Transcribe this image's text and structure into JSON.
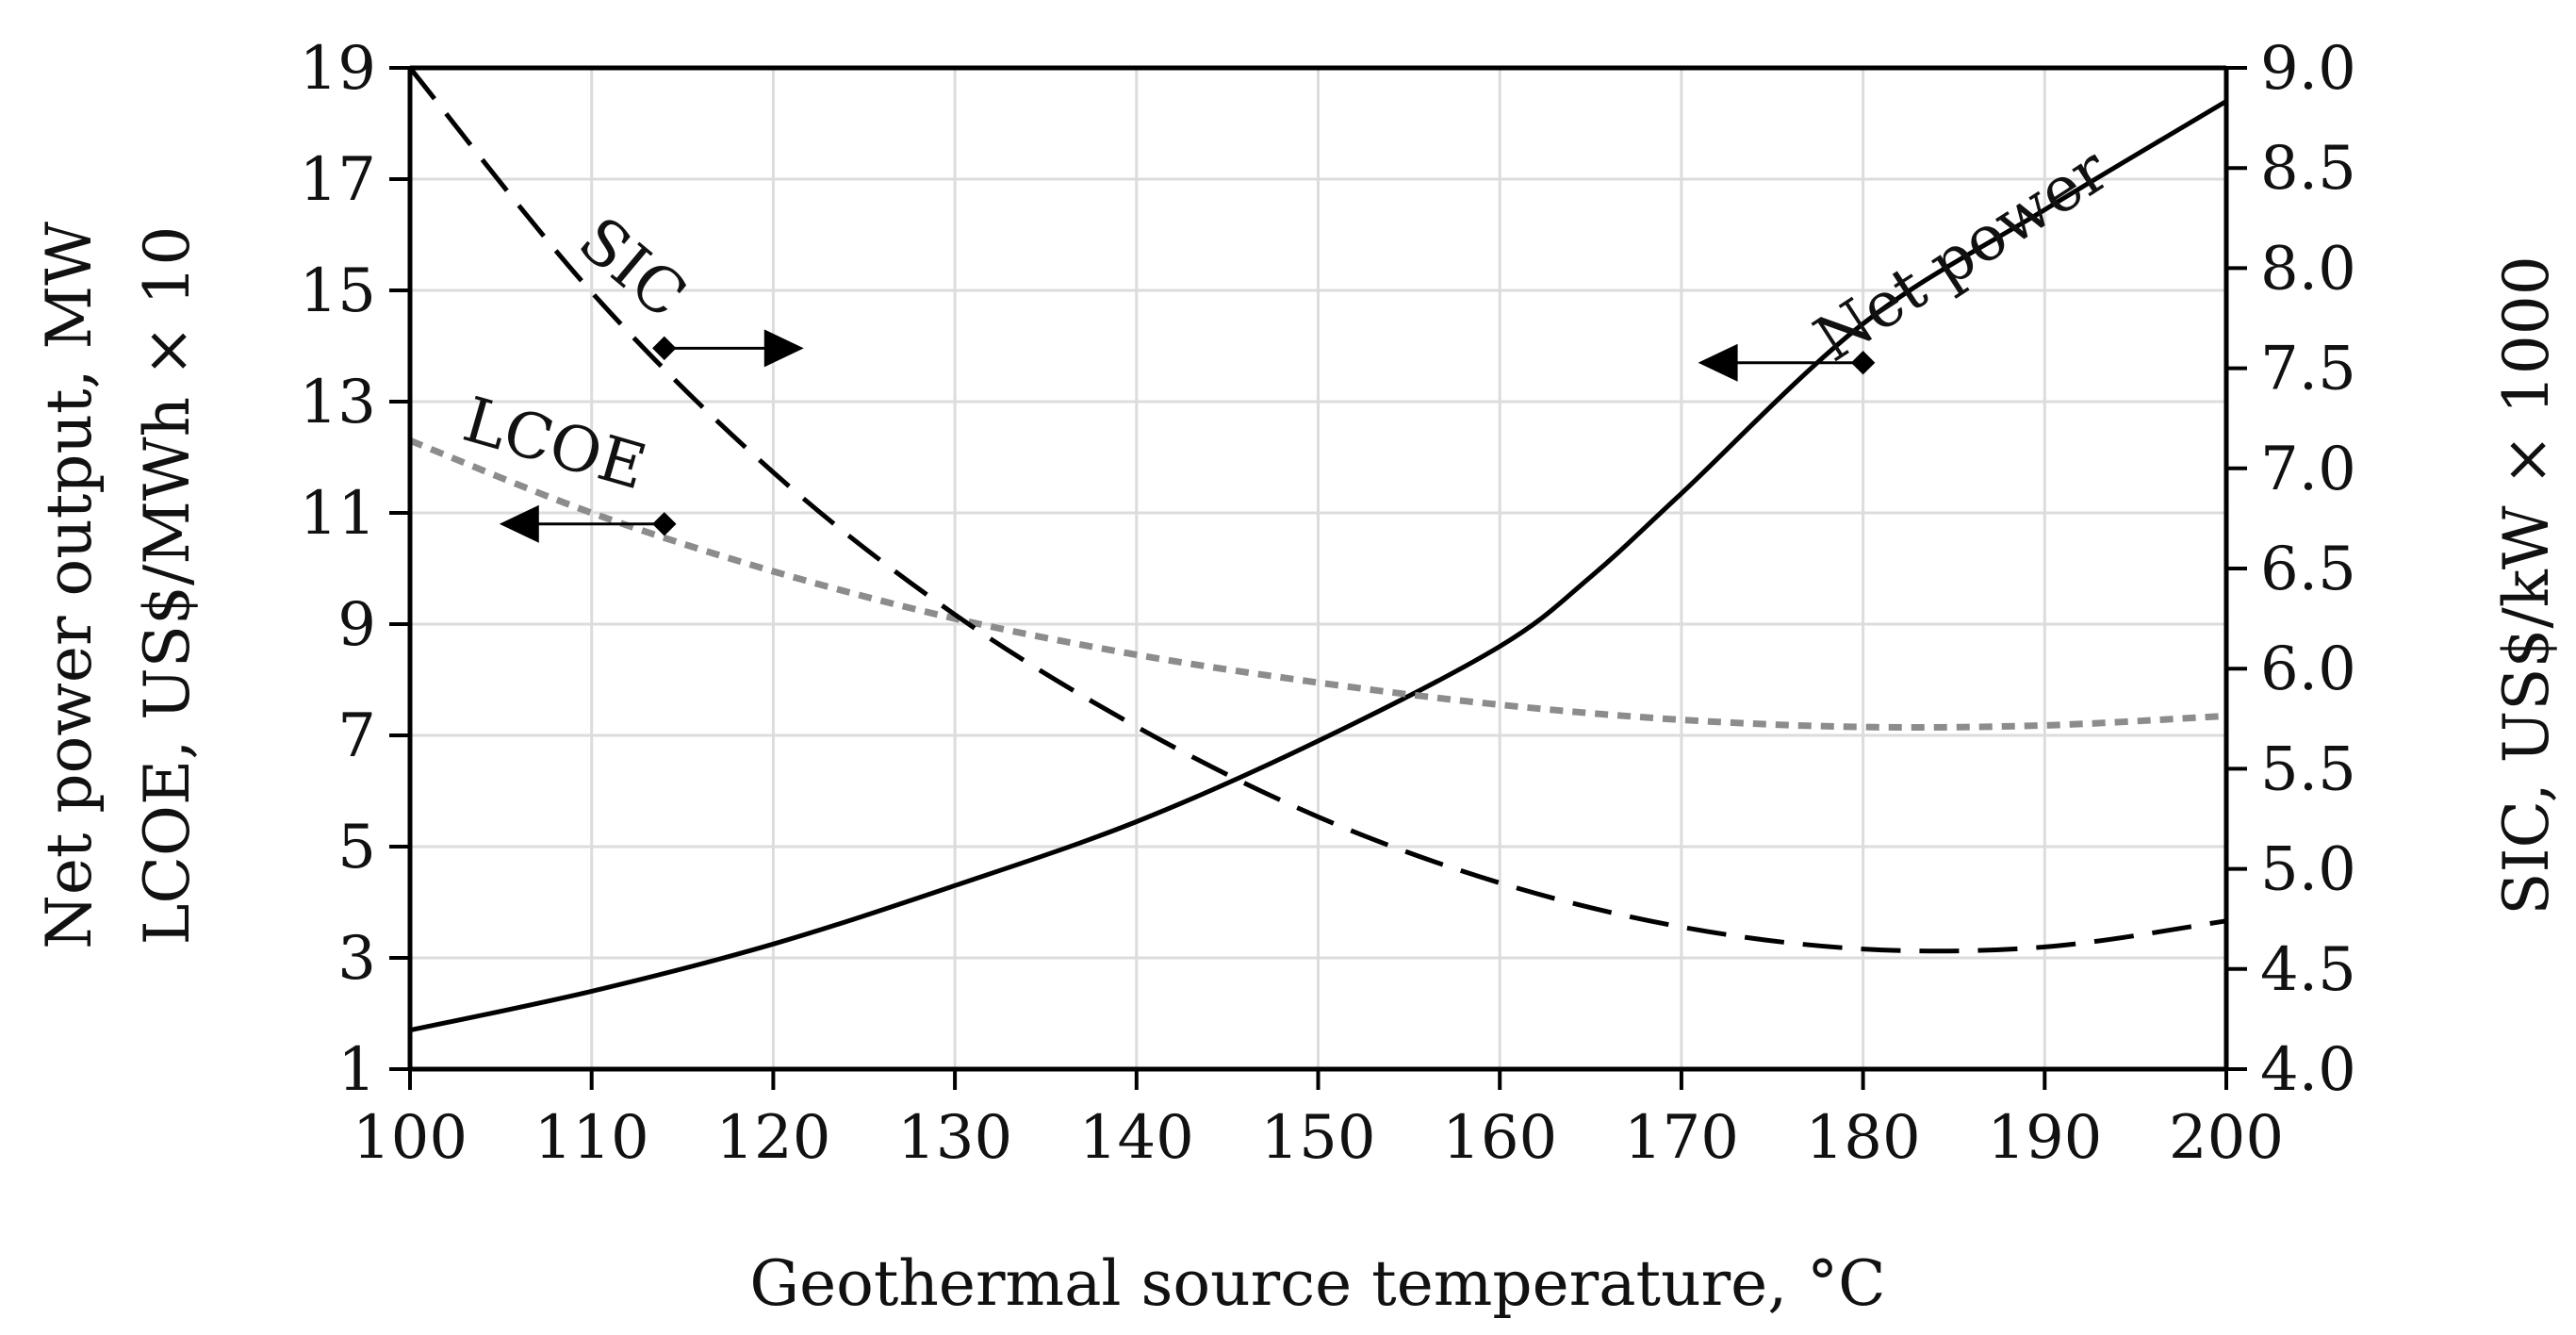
{
  "chart_data": {
    "type": "line",
    "xlabel": "Geothermal source temperature, °C",
    "ylabel_left": [
      "Net power output, MW",
      "LCOE, US$/MWh × 10"
    ],
    "ylabel_right": "SIC, US$/kW × 1000",
    "xlim": [
      100,
      200
    ],
    "ylim_left": [
      1,
      19
    ],
    "ylim_right": [
      4.0,
      9.0
    ],
    "grid": true,
    "x_ticks": [
      "100",
      "110",
      "120",
      "130",
      "140",
      "150",
      "160",
      "170",
      "180",
      "190",
      "200"
    ],
    "y_left_ticks": [
      "1",
      "3",
      "5",
      "7",
      "9",
      "11",
      "13",
      "15",
      "17",
      "19"
    ],
    "y_right_ticks": [
      "4.0",
      "4.5",
      "5.0",
      "5.5",
      "6.0",
      "6.5",
      "7.0",
      "7.5",
      "8.0",
      "8.5",
      "9.0"
    ],
    "series": [
      {
        "name": "Net power",
        "axis": "left",
        "style": "solid",
        "color": "#000000",
        "x": [
          100,
          110,
          120,
          130,
          140,
          150,
          160,
          165,
          170,
          180,
          190,
          200
        ],
        "values": [
          1.7,
          2.4,
          3.25,
          4.3,
          5.45,
          6.9,
          8.6,
          9.85,
          11.35,
          14.4,
          16.45,
          18.4
        ]
      },
      {
        "name": "LCOE",
        "axis": "left",
        "style": "dotted",
        "color": "#8c8c8c",
        "x": [
          100,
          110,
          120,
          130,
          140,
          150,
          160,
          170,
          180,
          190,
          200
        ],
        "values": [
          12.3,
          11.0,
          9.95,
          9.1,
          8.45,
          7.95,
          7.55,
          7.28,
          7.15,
          7.18,
          7.35
        ]
      },
      {
        "name": "SIC",
        "axis": "right",
        "style": "dashed",
        "color": "#000000",
        "x": [
          100,
          110,
          120,
          130,
          140,
          150,
          160,
          170,
          180,
          190,
          200
        ],
        "values": [
          9.0,
          7.88,
          6.98,
          6.27,
          5.71,
          5.26,
          4.93,
          4.71,
          4.6,
          4.61,
          4.74
        ]
      }
    ],
    "annotations": [
      {
        "text": "Net power",
        "series": "Net power",
        "arrow_to": "left",
        "x": 180,
        "y": 13.7
      },
      {
        "text": "SIC",
        "series": "SIC",
        "arrow_to": "right",
        "x": 114,
        "y": 7.6
      },
      {
        "text": "LCOE",
        "series": "LCOE",
        "arrow_to": "left",
        "x": 114,
        "y": 10.8
      }
    ]
  }
}
